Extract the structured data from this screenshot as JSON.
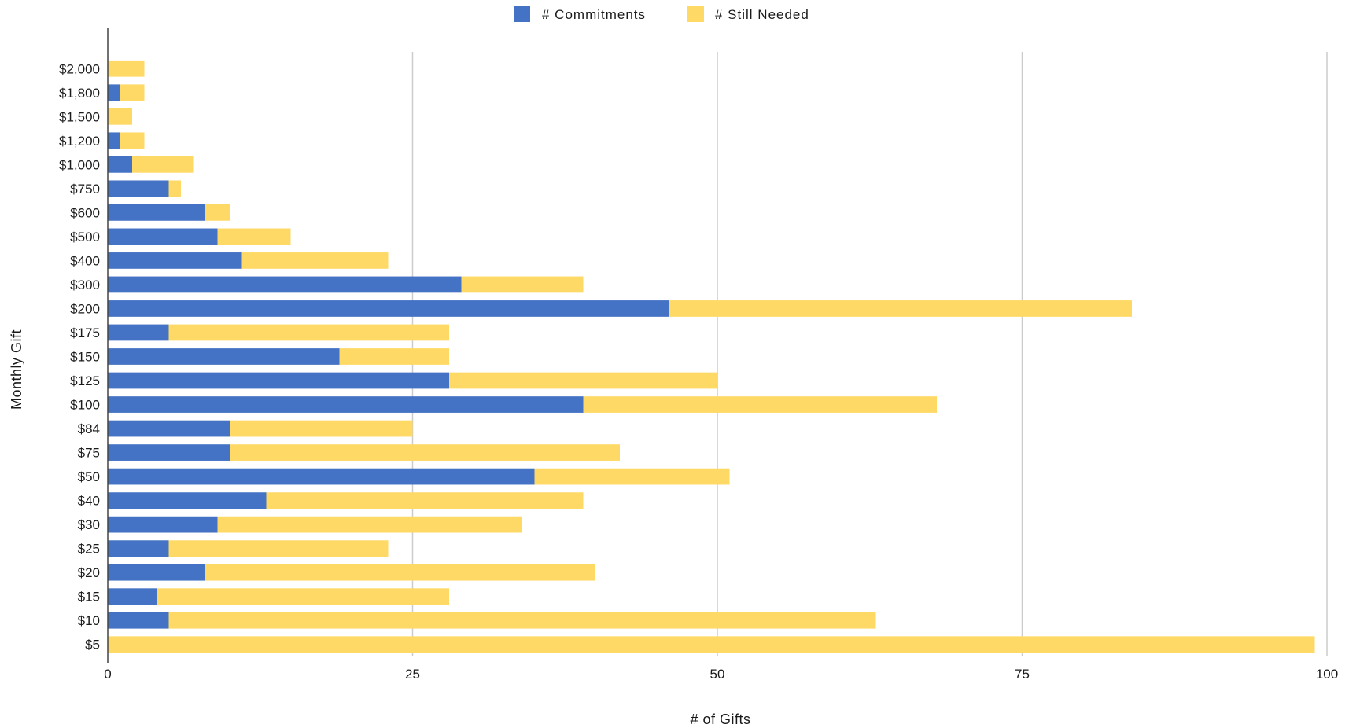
{
  "chart_data": {
    "type": "bar",
    "orientation": "horizontal",
    "stacked": true,
    "categories": [
      "$2,000",
      "$1,800",
      "$1,500",
      "$1,200",
      "$1,000",
      "$750",
      "$600",
      "$500",
      "$400",
      "$300",
      "$200",
      "$175",
      "$150",
      "$125",
      "$100",
      "$84",
      "$75",
      "$50",
      "$40",
      "$30",
      "$25",
      "$20",
      "$15",
      "$10",
      "$5"
    ],
    "series": [
      {
        "name": "# Commitments",
        "color": "#4472C4",
        "values": [
          0,
          1,
          0,
          1,
          2,
          5,
          8,
          9,
          11,
          29,
          46,
          5,
          19,
          28,
          39,
          10,
          10,
          35,
          13,
          9,
          5,
          8,
          4,
          5,
          0
        ]
      },
      {
        "name": "# Still Needed",
        "color": "#FFD966",
        "values": [
          3,
          2,
          2,
          2,
          5,
          1,
          2,
          6,
          12,
          10,
          38,
          23,
          9,
          22,
          29,
          15,
          32,
          16,
          26,
          25,
          18,
          32,
          24,
          58,
          99
        ]
      }
    ],
    "xlabel": "# of Gifts",
    "ylabel": "Monthly Gift",
    "xlim": [
      0,
      100
    ],
    "xticks": [
      0,
      25,
      50,
      75,
      100
    ],
    "grid": true,
    "legend_position": "top-center"
  }
}
